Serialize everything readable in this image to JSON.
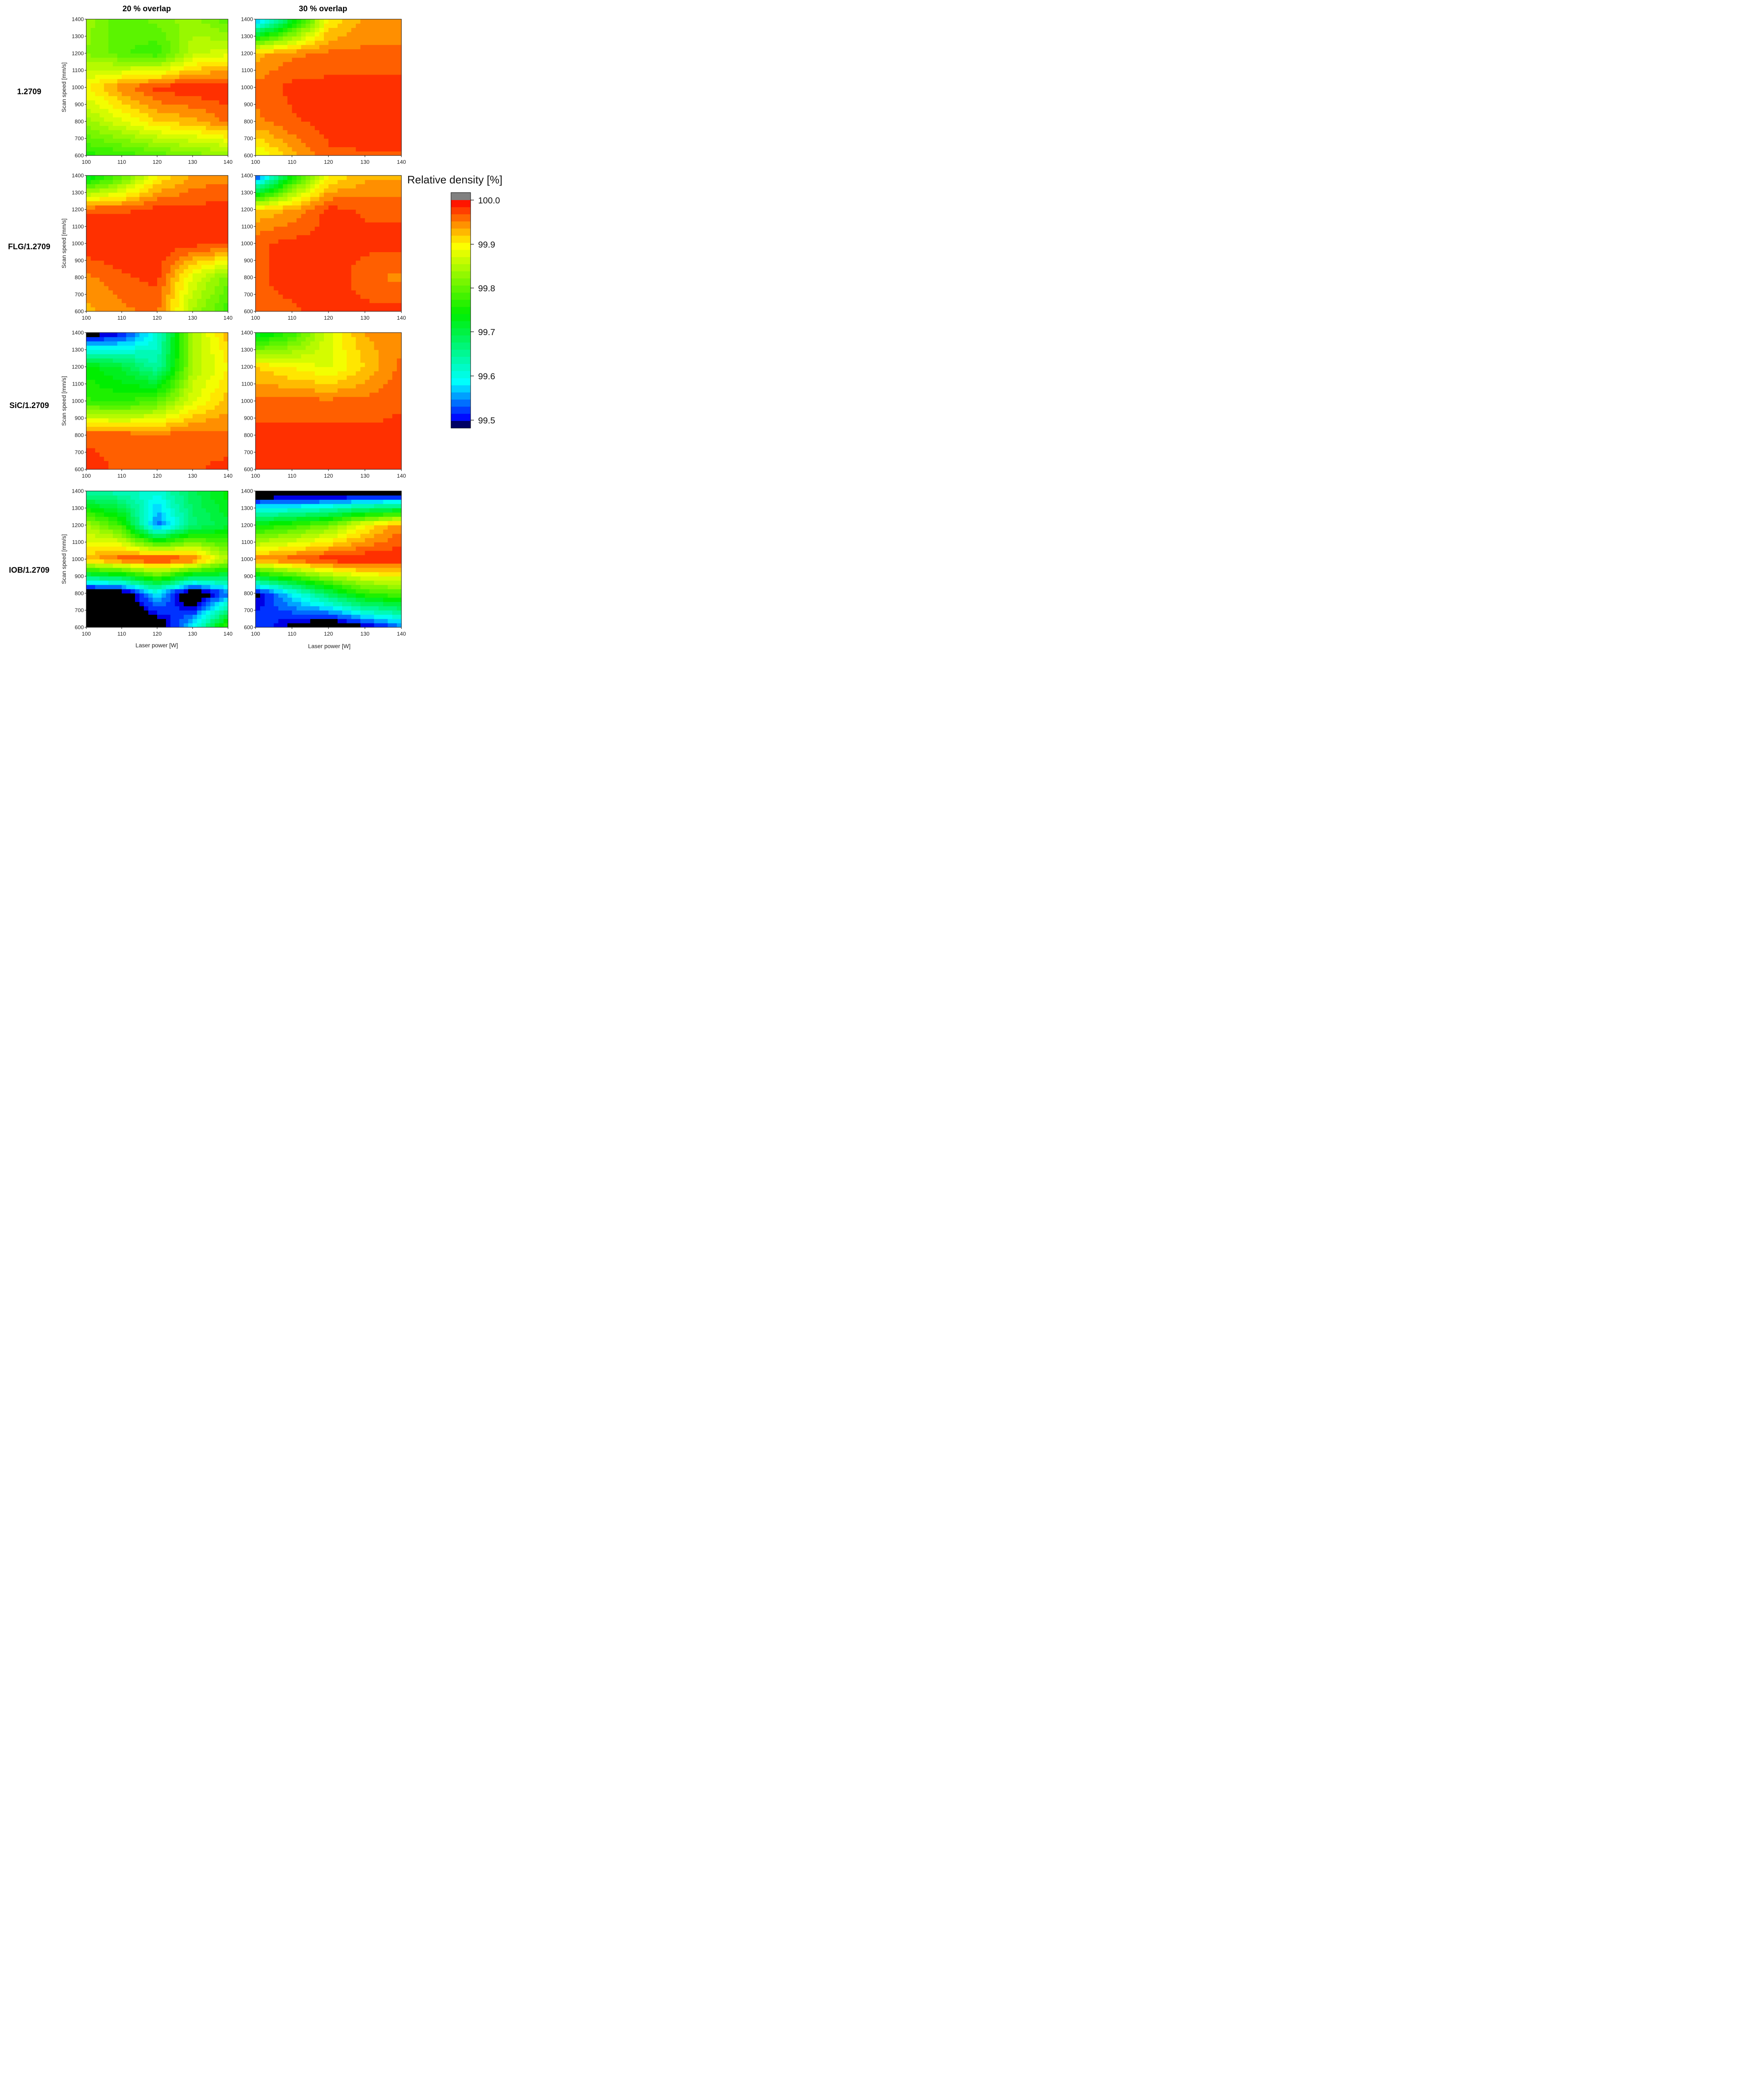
{
  "chart_data": {
    "type": "heatmap",
    "subtype": "filled-contour",
    "column_titles": [
      "20 % overlap",
      "30 % overlap"
    ],
    "row_labels": [
      "1.2709",
      "FLG/1.2709",
      "SiC/1.2709",
      "IOB/1.2709"
    ],
    "xlabel": "Laser power [W]",
    "ylabel": "Scan speed [mm/s]",
    "x_ticks": [
      100,
      110,
      120,
      130,
      140
    ],
    "y_ticks": [
      600,
      700,
      800,
      900,
      1000,
      1100,
      1200,
      1300,
      1400
    ],
    "xlim": [
      100,
      140
    ],
    "ylim": [
      600,
      1400
    ],
    "x": [
      100,
      110,
      120,
      130,
      140
    ],
    "y": [
      600,
      800,
      1000,
      1200,
      1400
    ],
    "colorbar": {
      "title": "Relative density [%]",
      "ticks": [
        "100.0",
        "99.9",
        "99.8",
        "99.7",
        "99.6",
        "99.5"
      ],
      "range": [
        99.5,
        100.0
      ],
      "stops": [
        {
          "v": 99.5,
          "color": "#000000"
        },
        {
          "v": 99.52,
          "color": "#0000ff"
        },
        {
          "v": 99.6,
          "color": "#00ffff"
        },
        {
          "v": 99.75,
          "color": "#00ee00"
        },
        {
          "v": 99.9,
          "color": "#ffff00"
        },
        {
          "v": 99.94,
          "color": "#ffa000"
        },
        {
          "v": 100.0,
          "color": "#ff0000"
        }
      ],
      "over_color": "#808080"
    },
    "panels": [
      {
        "row": "1.2709",
        "overlap": "20 % overlap",
        "z": [
          [
            99.77,
            99.78,
            99.8,
            99.82,
            99.83
          ],
          [
            99.84,
            99.88,
            99.92,
            99.93,
            99.96
          ],
          [
            99.9,
            99.95,
            99.98,
            99.99,
            99.99
          ],
          [
            99.83,
            99.8,
            99.78,
            99.86,
            99.88
          ],
          [
            99.84,
            99.8,
            99.82,
            99.84,
            99.8
          ]
        ]
      },
      {
        "row": "1.2709",
        "overlap": "30 % overlap",
        "z": [
          [
            99.88,
            99.93,
            99.97,
            99.97,
            99.97
          ],
          [
            99.95,
            99.97,
            99.98,
            99.99,
            99.99
          ],
          [
            99.96,
            99.98,
            99.98,
            99.98,
            99.98
          ],
          [
            99.93,
            99.95,
            99.96,
            99.96,
            99.96
          ],
          [
            99.55,
            99.72,
            99.9,
            99.94,
            99.94
          ]
        ]
      },
      {
        "row": "FLG/1.2709",
        "overlap": "20 % overlap",
        "z": [
          [
            99.93,
            99.95,
            99.96,
            99.85,
            99.78
          ],
          [
            99.95,
            99.97,
            99.98,
            99.88,
            99.82
          ],
          [
            99.99,
            99.99,
            99.99,
            99.98,
            99.98
          ],
          [
            99.97,
            99.97,
            99.98,
            99.98,
            99.98
          ],
          [
            99.72,
            99.8,
            99.9,
            99.94,
            99.95
          ]
        ]
      },
      {
        "row": "FLG/1.2709",
        "overlap": "30 % overlap",
        "z": [
          [
            99.97,
            99.97,
            99.98,
            99.98,
            99.98
          ],
          [
            99.97,
            99.98,
            99.99,
            99.96,
            99.95
          ],
          [
            99.97,
            99.98,
            99.98,
            99.98,
            99.98
          ],
          [
            99.92,
            99.94,
            99.98,
            99.97,
            99.97
          ],
          [
            99.52,
            99.75,
            99.9,
            99.93,
            99.93
          ]
        ]
      },
      {
        "row": "SiC/1.2709",
        "overlap": "20 % overlap",
        "z": [
          [
            99.98,
            99.97,
            99.97,
            99.97,
            99.98
          ],
          [
            99.97,
            99.97,
            99.96,
            99.97,
            99.96
          ],
          [
            99.78,
            99.77,
            99.8,
            99.88,
            99.93
          ],
          [
            99.75,
            99.72,
            99.65,
            99.85,
            99.9
          ],
          [
            99.48,
            99.52,
            99.62,
            99.85,
            99.93
          ]
        ]
      },
      {
        "row": "SiC/1.2709",
        "overlap": "30 % overlap",
        "z": [
          [
            99.99,
            99.98,
            99.98,
            99.98,
            99.99
          ],
          [
            99.98,
            99.98,
            99.98,
            99.98,
            99.98
          ],
          [
            99.96,
            99.96,
            99.96,
            99.96,
            99.97
          ],
          [
            99.92,
            99.9,
            99.88,
            99.92,
            99.96
          ],
          [
            99.72,
            99.78,
            99.88,
            99.94,
            99.95
          ]
        ]
      },
      {
        "row": "IOB/1.2709",
        "overlap": "20 % overlap",
        "z": [
          [
            99.45,
            99.45,
            99.47,
            99.6,
            99.8
          ],
          [
            99.45,
            99.47,
            99.6,
            99.45,
            99.55
          ],
          [
            99.93,
            99.97,
            99.99,
            99.97,
            99.85
          ],
          [
            99.85,
            99.78,
            99.55,
            99.68,
            99.72
          ],
          [
            99.65,
            99.64,
            99.62,
            99.7,
            99.75
          ]
        ]
      },
      {
        "row": "IOB/1.2709",
        "overlap": "30 % overlap",
        "z": [
          [
            99.55,
            99.5,
            99.45,
            99.5,
            99.55
          ],
          [
            99.5,
            99.6,
            99.7,
            99.78,
            99.8
          ],
          [
            99.95,
            99.97,
            99.99,
            99.99,
            99.99
          ],
          [
            99.75,
            99.78,
            99.82,
            99.9,
            99.95
          ],
          [
            99.45,
            99.45,
            99.45,
            99.45,
            99.45
          ]
        ]
      }
    ]
  }
}
